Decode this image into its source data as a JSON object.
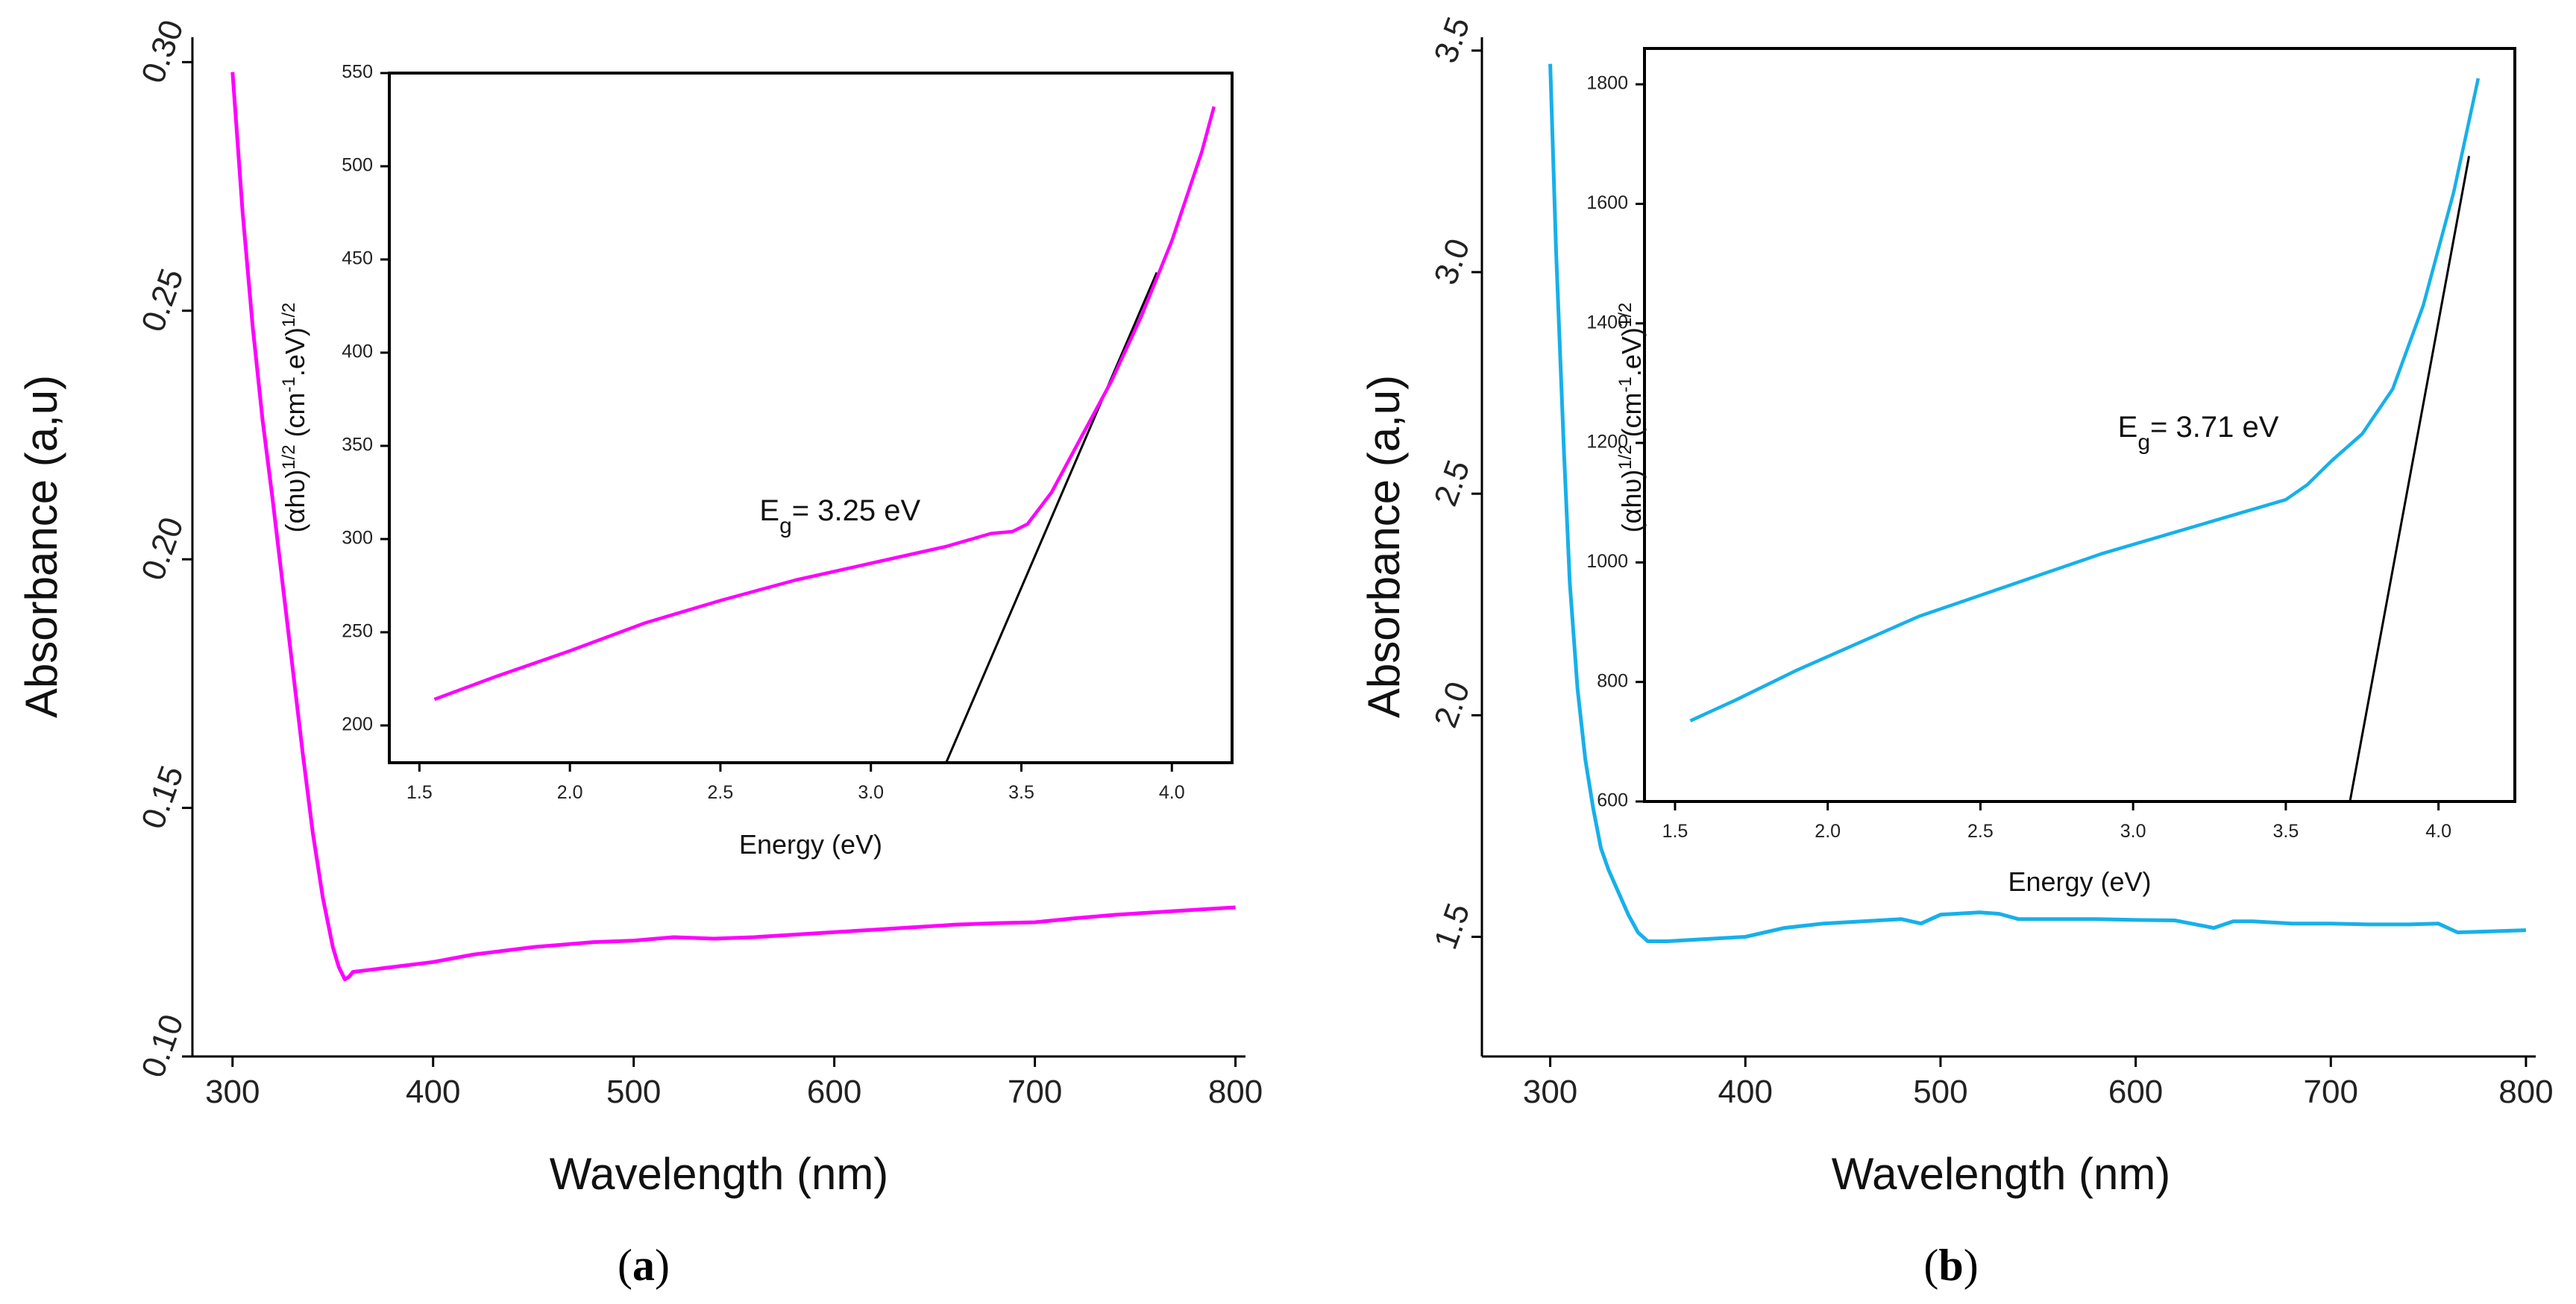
{
  "panels": [
    {
      "id": "a",
      "sublabel": {
        "open": "(",
        "letter": "a",
        "close": ")"
      },
      "colors": {
        "curve": "#ff00ff",
        "fit": "#000000"
      },
      "main": {
        "xlabel": "Wavelength (nm)",
        "ylabel": "Absorbance (a,u)",
        "xlim": [
          280,
          805
        ],
        "ylim": [
          0.1,
          0.305
        ],
        "xticks": [
          300,
          400,
          500,
          600,
          700,
          800
        ],
        "yticks": [
          0.1,
          0.15,
          0.2,
          0.25,
          0.3
        ],
        "xtick_labels": [
          "300",
          "400",
          "500",
          "600",
          "700",
          "800"
        ],
        "ytick_labels": [
          "0.10",
          "0.15",
          "0.20",
          "0.25",
          "0.30"
        ]
      },
      "inset": {
        "xlabel": "Energy (eV)",
        "ylabel": "(αhυ)1/2 (cm-1.eV)1/2",
        "ylabel_parts": [
          "(αhυ)",
          "1/2",
          " (cm",
          "-1",
          ".eV)",
          "1/2"
        ],
        "annotation": {
          "main": "E",
          "sub": "g",
          "rest": "= 3.25 eV",
          "x": 2.63,
          "y": 310
        },
        "xlim": [
          1.4,
          4.2
        ],
        "ylim": [
          180,
          550
        ],
        "xticks": [
          1.5,
          2.0,
          2.5,
          3.0,
          3.5,
          4.0
        ],
        "yticks": [
          200,
          250,
          300,
          350,
          400,
          450,
          500,
          550
        ],
        "xtick_labels": [
          "1.5",
          "2.0",
          "2.5",
          "3.0",
          "3.5",
          "4.0"
        ],
        "ytick_labels": [
          "200",
          "250",
          "300",
          "350",
          "400",
          "450",
          "500",
          "550"
        ]
      }
    },
    {
      "id": "b",
      "sublabel": {
        "open": "(",
        "letter": "b",
        "close": ")"
      },
      "colors": {
        "curve": "#17b0ea",
        "fit": "#000000"
      },
      "main": {
        "xlabel": "Wavelength (nm)",
        "ylabel": "Absorbance (a,u)",
        "xlim": [
          265,
          805
        ],
        "ylim": [
          1.23,
          3.53
        ],
        "xticks": [
          300,
          400,
          500,
          600,
          700,
          800
        ],
        "yticks": [
          1.5,
          2.0,
          2.5,
          3.0,
          3.5
        ],
        "xtick_labels": [
          "300",
          "400",
          "500",
          "600",
          "700",
          "800"
        ],
        "ytick_labels": [
          "1.5",
          "2.0",
          "2.5",
          "3.0",
          "3.5"
        ]
      },
      "inset": {
        "xlabel": "Energy (eV)",
        "ylabel": "(αhυ)1/2 (cm-1.eV)1/2",
        "ylabel_parts": [
          "(αhυ)",
          "1/2",
          " (cm",
          "-1",
          ".eV)",
          "1/2"
        ],
        "annotation": {
          "main": "E",
          "sub": "g",
          "rest": "= 3.71 eV",
          "x": 2.95,
          "y": 1210
        },
        "xlim": [
          1.4,
          4.25
        ],
        "ylim": [
          600,
          1860
        ],
        "xticks": [
          1.5,
          2.0,
          2.5,
          3.0,
          3.5,
          4.0
        ],
        "yticks": [
          600,
          800,
          1000,
          1200,
          1400,
          1600,
          1800
        ],
        "xtick_labels": [
          "1.5",
          "2.0",
          "2.5",
          "3.0",
          "3.5",
          "4.0"
        ],
        "ytick_labels": [
          "600",
          "800",
          "1000",
          "1200",
          "1400",
          "1600",
          "1800"
        ]
      }
    }
  ],
  "chart_data": [
    {
      "type": "line",
      "panel": "a",
      "xlabel": "Wavelength (nm)",
      "ylabel": "Absorbance (a,u)",
      "xlim": [
        280,
        805
      ],
      "ylim": [
        0.1,
        0.305
      ],
      "grid": false,
      "series": [
        {
          "x": [
            300,
            305,
            310,
            315,
            320,
            325,
            330,
            335,
            340,
            345,
            350,
            353,
            356,
            358,
            360,
            370,
            380,
            400,
            420,
            450,
            480,
            500,
            520,
            540,
            560,
            580,
            600,
            620,
            640,
            660,
            680,
            700,
            720,
            740,
            760,
            780,
            800
          ],
          "values": [
            0.298,
            0.27,
            0.247,
            0.228,
            0.212,
            0.195,
            0.178,
            0.161,
            0.145,
            0.132,
            0.122,
            0.118,
            0.1155,
            0.116,
            0.117,
            0.1175,
            0.118,
            0.119,
            0.1205,
            0.122,
            0.123,
            0.1233,
            0.124,
            0.1237,
            0.124,
            0.1245,
            0.125,
            0.1255,
            0.126,
            0.1265,
            0.1268,
            0.127,
            0.1278,
            0.1285,
            0.129,
            0.1295,
            0.13
          ]
        }
      ]
    },
    {
      "type": "line",
      "panel": "a-inset",
      "xlabel": "Energy (eV)",
      "ylabel": "(αhυ)1/2 (cm-1.eV)1/2",
      "xlim": [
        1.4,
        4.2
      ],
      "ylim": [
        180,
        550
      ],
      "grid": false,
      "annotations": [
        "Eg= 3.25 eV"
      ],
      "series": [
        {
          "x": [
            1.55,
            1.75,
            2.0,
            2.25,
            2.5,
            2.75,
            3.0,
            3.25,
            3.4,
            3.47,
            3.52,
            3.6,
            3.7,
            3.8,
            3.9,
            4.0,
            4.1,
            4.14
          ],
          "values": [
            214,
            226,
            240,
            255,
            267,
            278,
            287,
            296,
            303,
            304,
            308,
            325,
            355,
            385,
            420,
            460,
            508,
            532
          ]
        },
        {
          "x": [
            3.25,
            3.95
          ],
          "values": [
            180,
            443
          ]
        }
      ]
    },
    {
      "type": "line",
      "panel": "b",
      "xlabel": "Wavelength (nm)",
      "ylabel": "Absorbance (a,u)",
      "xlim": [
        265,
        805
      ],
      "ylim": [
        1.23,
        3.53
      ],
      "grid": false,
      "series": [
        {
          "x": [
            300,
            303,
            307,
            310,
            314,
            318,
            322,
            326,
            330,
            335,
            340,
            345,
            350,
            360,
            380,
            400,
            420,
            440,
            460,
            480,
            490,
            500,
            520,
            530,
            540,
            560,
            580,
            600,
            620,
            640,
            650,
            660,
            680,
            700,
            720,
            740,
            755,
            765,
            780,
            800
          ],
          "values": [
            3.47,
            3.05,
            2.6,
            2.3,
            2.06,
            1.9,
            1.79,
            1.7,
            1.65,
            1.6,
            1.55,
            1.51,
            1.49,
            1.49,
            1.495,
            1.5,
            1.52,
            1.53,
            1.535,
            1.54,
            1.53,
            1.55,
            1.555,
            1.552,
            1.54,
            1.54,
            1.54,
            1.538,
            1.537,
            1.52,
            1.535,
            1.535,
            1.53,
            1.53,
            1.528,
            1.528,
            1.53,
            1.51,
            1.512,
            1.515
          ]
        }
      ]
    },
    {
      "type": "line",
      "panel": "b-inset",
      "xlabel": "Energy (eV)",
      "ylabel": "(αhυ)1/2 (cm-1.eV)1/2",
      "xlim": [
        1.4,
        4.25
      ],
      "ylim": [
        600,
        1860
      ],
      "grid": false,
      "annotations": [
        "Eg= 3.71 eV"
      ],
      "series": [
        {
          "x": [
            1.55,
            1.7,
            1.9,
            2.1,
            2.3,
            2.5,
            2.7,
            2.9,
            3.1,
            3.3,
            3.5,
            3.57,
            3.65,
            3.75,
            3.85,
            3.95,
            4.05,
            4.13
          ],
          "values": [
            735,
            770,
            820,
            865,
            910,
            945,
            980,
            1015,
            1045,
            1075,
            1105,
            1130,
            1170,
            1215,
            1290,
            1430,
            1620,
            1810
          ]
        },
        {
          "x": [
            3.71,
            4.1
          ],
          "values": [
            600,
            1680
          ]
        }
      ]
    }
  ]
}
